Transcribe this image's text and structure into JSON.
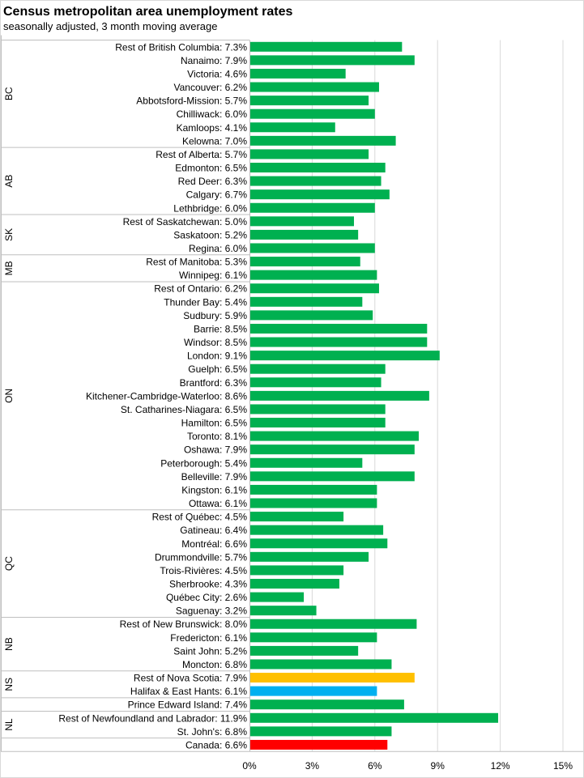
{
  "chart_data": {
    "type": "bar",
    "orientation": "horizontal",
    "title": "Census metropolitan area unemployment rates",
    "subtitle": "seasonally adjusted, 3 month moving average",
    "xlabel": "",
    "ylabel": "",
    "xlim": [
      0,
      15
    ],
    "ticks": [
      0,
      3,
      6,
      9,
      12,
      15
    ],
    "tick_labels": [
      "0%",
      "3%",
      "6%",
      "9%",
      "12%",
      "15%"
    ],
    "grid": true,
    "legend": "none",
    "colors": {
      "default": "#00B050",
      "rest_of_nova_scotia": "#FFC000",
      "halifax": "#00B0F0",
      "canada": "#FF0000"
    },
    "groups": [
      {
        "name": "BC",
        "rows": [
          {
            "label": "Rest of British Columbia: 7.3%",
            "value": 7.3
          },
          {
            "label": "Nanaimo: 7.9%",
            "value": 7.9
          },
          {
            "label": "Victoria: 4.6%",
            "value": 4.6
          },
          {
            "label": "Vancouver: 6.2%",
            "value": 6.2
          },
          {
            "label": "Abbotsford-Mission: 5.7%",
            "value": 5.7
          },
          {
            "label": "Chilliwack: 6.0%",
            "value": 6.0
          },
          {
            "label": "Kamloops: 4.1%",
            "value": 4.1
          },
          {
            "label": "Kelowna: 7.0%",
            "value": 7.0
          }
        ]
      },
      {
        "name": "AB",
        "rows": [
          {
            "label": "Rest of Alberta: 5.7%",
            "value": 5.7
          },
          {
            "label": "Edmonton: 6.5%",
            "value": 6.5
          },
          {
            "label": "Red Deer: 6.3%",
            "value": 6.3
          },
          {
            "label": "Calgary: 6.7%",
            "value": 6.7
          },
          {
            "label": "Lethbridge: 6.0%",
            "value": 6.0
          }
        ]
      },
      {
        "name": "SK",
        "rows": [
          {
            "label": "Rest of Saskatchewan: 5.0%",
            "value": 5.0
          },
          {
            "label": "Saskatoon: 5.2%",
            "value": 5.2
          },
          {
            "label": "Regina: 6.0%",
            "value": 6.0
          }
        ]
      },
      {
        "name": "MB",
        "rows": [
          {
            "label": "Rest of Manitoba: 5.3%",
            "value": 5.3
          },
          {
            "label": "Winnipeg: 6.1%",
            "value": 6.1
          }
        ]
      },
      {
        "name": "ON",
        "rows": [
          {
            "label": "Rest of Ontario: 6.2%",
            "value": 6.2
          },
          {
            "label": "Thunder Bay: 5.4%",
            "value": 5.4
          },
          {
            "label": "Sudbury: 5.9%",
            "value": 5.9
          },
          {
            "label": "Barrie: 8.5%",
            "value": 8.5
          },
          {
            "label": "Windsor: 8.5%",
            "value": 8.5
          },
          {
            "label": "London: 9.1%",
            "value": 9.1
          },
          {
            "label": "Guelph: 6.5%",
            "value": 6.5
          },
          {
            "label": "Brantford: 6.3%",
            "value": 6.3
          },
          {
            "label": "Kitchener-Cambridge-Waterloo: 8.6%",
            "value": 8.6
          },
          {
            "label": "St. Catharines-Niagara: 6.5%",
            "value": 6.5
          },
          {
            "label": "Hamilton: 6.5%",
            "value": 6.5
          },
          {
            "label": "Toronto: 8.1%",
            "value": 8.1
          },
          {
            "label": "Oshawa: 7.9%",
            "value": 7.9
          },
          {
            "label": "Peterborough: 5.4%",
            "value": 5.4
          },
          {
            "label": "Belleville: 7.9%",
            "value": 7.9
          },
          {
            "label": "Kingston: 6.1%",
            "value": 6.1
          },
          {
            "label": "Ottawa: 6.1%",
            "value": 6.1
          }
        ]
      },
      {
        "name": "QC",
        "rows": [
          {
            "label": "Rest of Québec: 4.5%",
            "value": 4.5
          },
          {
            "label": "Gatineau: 6.4%",
            "value": 6.4
          },
          {
            "label": "Montréal: 6.6%",
            "value": 6.6
          },
          {
            "label": "Drummondville: 5.7%",
            "value": 5.7
          },
          {
            "label": "Trois-Rivières: 4.5%",
            "value": 4.5
          },
          {
            "label": "Sherbrooke: 4.3%",
            "value": 4.3
          },
          {
            "label": "Québec City: 2.6%",
            "value": 2.6
          },
          {
            "label": "Saguenay: 3.2%",
            "value": 3.2
          }
        ]
      },
      {
        "name": "NB",
        "rows": [
          {
            "label": "Rest of New Brunswick: 8.0%",
            "value": 8.0
          },
          {
            "label": "Fredericton: 6.1%",
            "value": 6.1
          },
          {
            "label": "Saint John: 5.2%",
            "value": 5.2
          },
          {
            "label": "Moncton: 6.8%",
            "value": 6.8
          }
        ]
      },
      {
        "name": "NS",
        "rows": [
          {
            "label": "Rest of Nova Scotia: 7.9%",
            "value": 7.9,
            "color": "#FFC000"
          },
          {
            "label": "Halifax & East Hants: 6.1%",
            "value": 6.1,
            "color": "#00B0F0"
          }
        ]
      },
      {
        "name": "",
        "rows": [
          {
            "label": "Prince Edward Island: 7.4%",
            "value": 7.4
          }
        ]
      },
      {
        "name": "NL",
        "rows": [
          {
            "label": "Rest of Newfoundland and Labrador: 11.9%",
            "value": 11.9
          },
          {
            "label": "St. John's: 6.8%",
            "value": 6.8
          }
        ]
      },
      {
        "name": "",
        "rows": [
          {
            "label": "Canada: 6.6%",
            "value": 6.6,
            "color": "#FF0000"
          }
        ]
      }
    ]
  }
}
